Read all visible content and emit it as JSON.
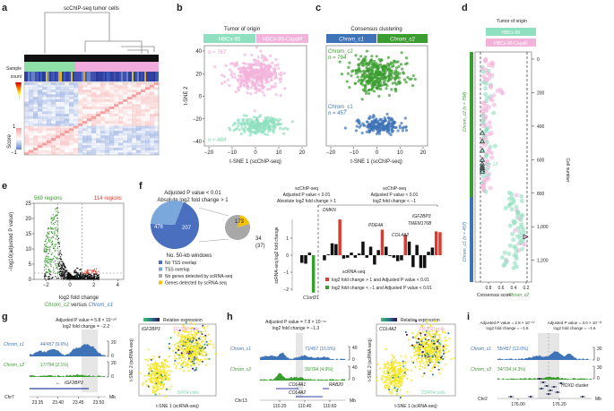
{
  "colors": {
    "hbcx95": "#8fe0c0",
    "capar": "#f2b2da",
    "chrom_c1": "#3f73b8",
    "chrom_c2": "#3a9d2f",
    "red": "#e03a2e",
    "green": "#3a9d2f",
    "pie_dark": "#4a6fbf",
    "pie_light": "#7aa7dc",
    "pie_gray": "#a8a8a8",
    "pie_yellow": "#f5c000"
  },
  "panels": {
    "a": {
      "label": "a",
      "title": "scChIP-seq tumor cells",
      "sample_label": "Sample",
      "count_label": "count",
      "score_label": "Score",
      "score_max": "1",
      "score_min": "−1"
    },
    "b": {
      "label": "b",
      "legend_title": "Tumor of origin",
      "legend_items": [
        "HBCx-95",
        "HBCx-95-CapaR"
      ],
      "n_top": "n = 767",
      "n_bottom": "n = 484",
      "xlabel": "t-SNE 1 (scChIP-seq)",
      "ylabel": "t-SNE 2",
      "xticks": [
        "−20",
        "−10",
        "0",
        "10",
        "20"
      ],
      "yticks": [
        "40",
        "20",
        "0",
        "−20",
        "−40"
      ]
    },
    "c": {
      "label": "c",
      "legend_title": "Consensus clustering",
      "legend_items": [
        "Chrom_c1",
        "Chrom_c2"
      ],
      "c2_name": "Chrom_c2",
      "c2_n": "n = 794",
      "c1_name": "Chrom_c1",
      "c1_n": "n = 457",
      "xlabel": "t-SNE 1 (scChIP-seq)",
      "xticks": [
        "−20",
        "−10",
        "0",
        "10",
        "20"
      ]
    },
    "d": {
      "label": "d",
      "legend_title": "Tumor of origin",
      "legend_items": [
        "HBCx-95",
        "HBCx-95-CapaR"
      ],
      "c2_side": "Chrom_c2 (n = 794)",
      "c1_side": "Chrom_c1 (n = 457)",
      "n13": "n = 13",
      "n1": "n = 1",
      "ylabel": "Cell number",
      "yticks": [
        "0",
        "200",
        "400",
        "600",
        "800",
        "1,000",
        "1,200"
      ],
      "xticks": [
        "0.8",
        "0.6",
        "0.4",
        "0.2"
      ],
      "xlabel": "Consensus score",
      "xlabel_c2": "Chrom_c2"
    },
    "e": {
      "label": "e",
      "left_count": "569 regions",
      "right_count": "114 regions",
      "ylabel": "−log10(adjusted P value)",
      "xlabel": "log2 fold change",
      "sub_c2": "Chrom_c2",
      "sub_vs": " versus ",
      "sub_c1": "Chrom_c1",
      "xticks": [
        "−2",
        "0",
        "2",
        "4"
      ],
      "yticks": [
        "25",
        "20",
        "15",
        "10",
        "5",
        "0"
      ]
    },
    "f": {
      "label": "f",
      "pie_title_1": "Adjusted P value < 0.01",
      "pie_title_2": "Absolute log2 fold change > 1",
      "pie_big": [
        {
          "label": "No TSS overlap",
          "value": 476
        },
        {
          "label": "TSS overlap",
          "value": 207
        }
      ],
      "pie_small": [
        {
          "label": "No genes detected by scRNA-seq",
          "value": 173
        },
        {
          "label": "Genes detected by scRNA-seq",
          "value": 34
        }
      ],
      "small_note": "(37)",
      "pie_caption": "No. 50-kb windows",
      "legend": [
        "No TSS overlap",
        "TSS overlap",
        "No genes detected by scRNA-seq",
        "Genes detected by scRNA-seq"
      ],
      "bar_header_left": [
        "scChIP-seq",
        "Adjusted P value < 0.01",
        "Absolute log2 fold change > 1"
      ],
      "bar_header_right": [
        "scChIP-seq",
        "Adjusted P value < 0.01",
        "log2 fold change < −1"
      ],
      "bar_ylabel": "scRNA-seq log2 fold change",
      "bar_yticks": [
        "1",
        "0",
        "−1",
        "−2"
      ],
      "gene_labels": [
        "DMKN",
        "PDE4A",
        "COL4A2",
        "TMEM176B",
        "IGF2BP3",
        "C1orf21"
      ],
      "bar_legend_title": "scRNA-seq:",
      "bar_legend": [
        "log2 fold change > 1 and Adjusted P value < 0.01",
        "log2 fold change < −1 and Adjusted P value < 0.01"
      ]
    },
    "g": {
      "label": "g",
      "stat_1": "Adjusted P value = 5.8 × 10⁻²⁰",
      "stat_2": "log2 fold change = −2.2",
      "track_c1": "Chrom_c1",
      "track_c1_count": "44/457 (9.6%)",
      "track_c2": "Chrom_c2",
      "track_c2_count": "17/794 (2.1%)",
      "scale_top": "20",
      "scale_zero": "0",
      "gene": "IGF2BP3",
      "chrom": "Chr7",
      "unit": "Mb",
      "xticks": [
        "23.35",
        "23.40",
        "23.45",
        "23.50"
      ],
      "tsne_gene": "IGF2BP3",
      "tsne_top": "121/838 cells",
      "tsne_bottom": "5/474 cells",
      "rel_expr": "Relative expression",
      "tsne_xlabel": "t-SNE 1 (scRNA-seq)",
      "tsne_ylabel": "t-SNE 2 (scRNA-seq)"
    },
    "h": {
      "label": "h",
      "stat_1": "Adjusted P value = 7.8 × 10⁻¹⁶",
      "stat_2": "log2 fold change = −1.3",
      "track_c1": "Chrom_c1",
      "track_c1_count": "71/457 (15.5%)",
      "track_c2": "Chrom_c2",
      "track_c2_count": "39/794 (4.9%)",
      "scale_top": "40",
      "scale_zero": "0",
      "genes": [
        "COL4A1",
        "RAB20",
        "COL4A2"
      ],
      "chrom": "Chr13",
      "unit": "Mb",
      "xticks": [
        "110.20",
        "110.40",
        "110.60"
      ],
      "tsne_gene": "COL4A2",
      "tsne_top": "136/838 cells",
      "tsne_bottom": "23/474 cells",
      "rel_expr": "Relative expression",
      "tsne_xlabel": "t-SNE 1 (scRNA-seq)",
      "tsne_ylabel": "t-SNE 2 (scRNA-seq)"
    },
    "i": {
      "label": "i",
      "stat_l1": "Adjusted P value = 2.8 × 10⁻¹⁰",
      "stat_l2": "log2 fold change = −1.8",
      "stat_r1": "Adjusted P value = 3.0 × 10⁻¹²",
      "stat_r2": "log2 fold change = −1.6",
      "track_c1": "Chrom_c1",
      "track_c1_count": "55/457 (12.0%)",
      "track_c2": "Chrom_c2",
      "track_c2_count": "34/794 (4.3%)",
      "scale_top": "30",
      "scale_zero": "0",
      "gene": "HOXD cluster",
      "chrom": "Chr2",
      "unit": "Mb",
      "xticks": [
        "176.00",
        "176.20"
      ]
    }
  },
  "chart_data": [
    {
      "panel": "b",
      "type": "scatter",
      "title": "Tumor of origin",
      "xlabel": "t-SNE 1 (scChIP-seq)",
      "ylabel": "t-SNE 2",
      "xlim": [
        -22,
        22
      ],
      "ylim": [
        -42,
        42
      ],
      "series": [
        {
          "name": "HBCx-95-CapaR",
          "n": 767,
          "center": [
            0,
            18
          ],
          "spread": [
            10,
            13
          ]
        },
        {
          "name": "HBCx-95",
          "n": 484,
          "center": [
            2,
            -25
          ],
          "spread": [
            9,
            6
          ]
        }
      ]
    },
    {
      "panel": "c",
      "type": "scatter",
      "title": "Consensus clustering",
      "xlabel": "t-SNE 1 (scChIP-seq)",
      "xlim": [
        -22,
        22
      ],
      "ylim": [
        -42,
        42
      ],
      "series": [
        {
          "name": "Chrom_c2",
          "n": 794,
          "center": [
            0,
            18
          ],
          "spread": [
            10,
            13
          ]
        },
        {
          "name": "Chrom_c1",
          "n": 457,
          "center": [
            2,
            -25
          ],
          "spread": [
            9,
            6
          ]
        }
      ]
    },
    {
      "panel": "e",
      "type": "scatter",
      "xlabel": "log2 fold change",
      "ylabel": "-log10(adjusted P value)",
      "xlim": [
        -3,
        4.5
      ],
      "ylim": [
        0,
        25
      ],
      "thresholds": {
        "x": [
          -1,
          1
        ],
        "y": 2
      },
      "series": [
        {
          "name": "down (Chrom_c2 vs Chrom_c1)",
          "count": 569
        },
        {
          "name": "up",
          "count": 114
        }
      ]
    },
    {
      "panel": "f-bars",
      "type": "bar",
      "ylabel": "scRNA-seq log2 fold change",
      "ylim": [
        -2.3,
        2.3
      ],
      "values": [
        -0.45,
        -0.5,
        0.15,
        -2.2,
        -0.3,
        0.05,
        0.7,
        0.65,
        2.1,
        -0.2,
        -0.15,
        0.15,
        -0.15,
        0.1,
        0.8,
        -0.15,
        0.5,
        -0.55,
        0.3,
        1.5,
        0.5,
        -0.05,
        -0.15,
        -0.35,
        -0.3,
        1.2,
        0.8,
        -0.7,
        0.6,
        -0.75,
        -0.75,
        0.2,
        0.45,
        1.4,
        1.35
      ],
      "highlight": {
        "3": "green",
        "8": "red",
        "19": "red",
        "25": "red",
        "33": "red",
        "34": "red"
      }
    }
  ]
}
